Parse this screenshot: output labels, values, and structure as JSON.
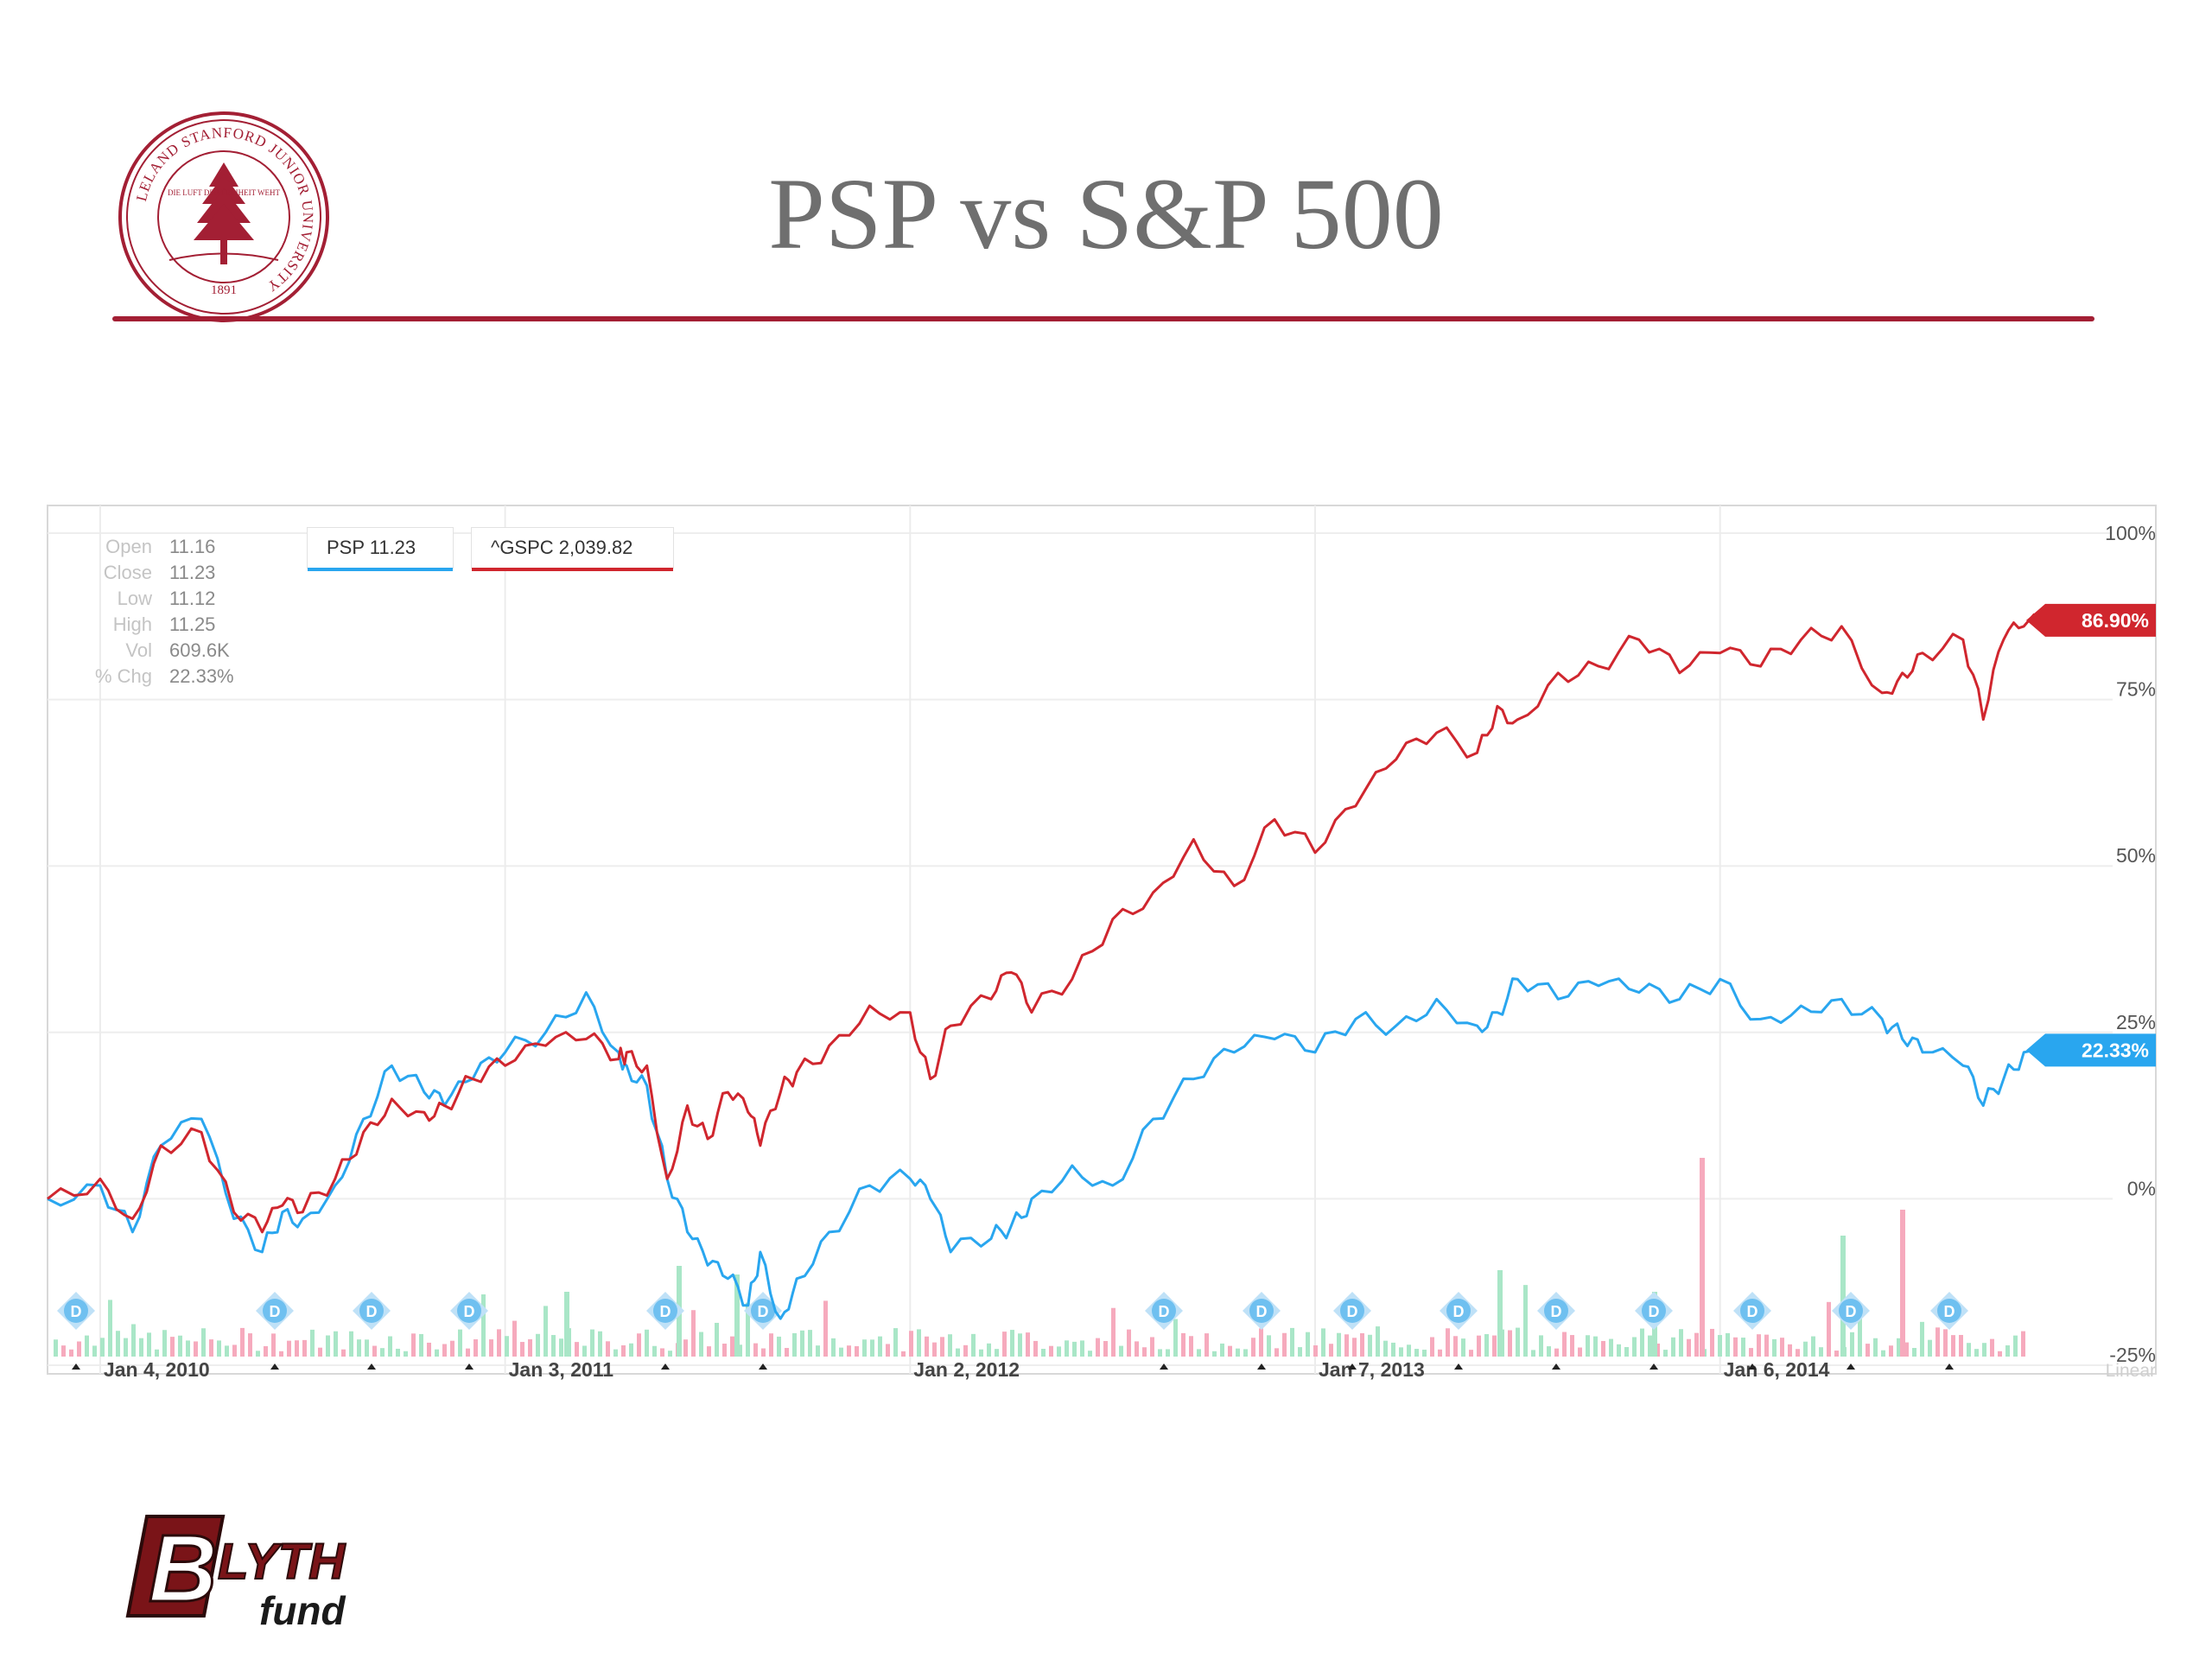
{
  "title": "PSP vs S&P 500",
  "seal_text": "LELAND STANFORD JUNIOR UNIVERSITY",
  "seal_motto": "DIE LUFT DER FREIHEIT WEHT",
  "seal_year": "1891",
  "logo": {
    "brand": "BLYTH",
    "sub": "fund"
  },
  "ohlc": [
    {
      "label": "Open",
      "value": "11.16"
    },
    {
      "label": "Close",
      "value": "11.23"
    },
    {
      "label": "Low",
      "value": "11.12"
    },
    {
      "label": "High",
      "value": "11.25"
    },
    {
      "label": "Vol",
      "value": "609.6K"
    },
    {
      "label": "% Chg",
      "value": "22.33%"
    }
  ],
  "legend": [
    {
      "text": "PSP 11.23",
      "color": "#29a6ef"
    },
    {
      "text": "^GSPC 2,039.82",
      "color": "#d0262e"
    }
  ],
  "chart_data": {
    "type": "line",
    "x_ticks": [
      "Jan 4, 2010",
      "Jan 3, 2011",
      "Jan 2, 2012",
      "Jan 7, 2013",
      "Jan 6, 2014"
    ],
    "y_ticks": [
      "100%",
      "75%",
      "50%",
      "25%",
      "0%",
      "-25%"
    ],
    "ylim": [
      -25,
      100
    ],
    "scale_label": "Linear",
    "grid": true,
    "series": [
      {
        "name": "PSP",
        "color": "#29a6ef",
        "last_label": "22.33%",
        "x": [
          2009.87,
          2010.0,
          2010.08,
          2010.15,
          2010.25,
          2010.33,
          2010.4,
          2010.45,
          2010.5,
          2010.58,
          2010.65,
          2010.72,
          2010.8,
          2010.85,
          2010.92,
          2011.0,
          2011.1,
          2011.2,
          2011.28,
          2011.3,
          2011.35,
          2011.4,
          2011.45,
          2011.5,
          2011.55,
          2011.6,
          2011.63,
          2011.68,
          2011.72,
          2011.8,
          2011.9,
          2012.0,
          2012.05,
          2012.1,
          2012.2,
          2012.25,
          2012.3,
          2012.4,
          2012.5,
          2012.6,
          2012.7,
          2012.8,
          2012.9,
          2013.0,
          2013.1,
          2013.2,
          2013.3,
          2013.4,
          2013.45,
          2013.5,
          2013.6,
          2013.7,
          2013.8,
          2013.9,
          2014.0,
          2014.1,
          2014.2,
          2014.3,
          2014.4,
          2014.45,
          2014.5,
          2014.6,
          2014.65,
          2014.7,
          2014.75,
          2014.85
        ],
        "values": [
          0,
          2,
          -5,
          8,
          12,
          -3,
          -8,
          -2,
          -3,
          2,
          12,
          20,
          16,
          14,
          18,
          22,
          25,
          31,
          22,
          20,
          17,
          3,
          -5,
          -10,
          -12,
          -16,
          -8,
          -18,
          -12,
          -5,
          2,
          3,
          0,
          -8,
          -6,
          -4,
          0,
          5,
          2,
          12,
          18,
          22,
          24,
          22,
          27,
          26,
          30,
          26,
          28,
          33,
          30,
          32,
          31,
          30,
          33,
          27,
          29,
          30,
          27,
          24,
          22,
          20,
          14,
          18,
          22,
          22.33
        ]
      },
      {
        "name": "^GSPC",
        "color": "#d0262e",
        "last_label": "86.90%",
        "x": [
          2009.87,
          2010.0,
          2010.08,
          2010.15,
          2010.25,
          2010.33,
          2010.4,
          2010.45,
          2010.5,
          2010.58,
          2010.65,
          2010.72,
          2010.8,
          2010.85,
          2010.92,
          2011.0,
          2011.1,
          2011.2,
          2011.28,
          2011.3,
          2011.35,
          2011.4,
          2011.45,
          2011.5,
          2011.55,
          2011.6,
          2011.63,
          2011.68,
          2011.72,
          2011.8,
          2011.9,
          2012.0,
          2012.05,
          2012.1,
          2012.2,
          2012.25,
          2012.3,
          2012.4,
          2012.5,
          2012.6,
          2012.7,
          2012.8,
          2012.9,
          2013.0,
          2013.1,
          2013.2,
          2013.3,
          2013.4,
          2013.45,
          2013.5,
          2013.6,
          2013.7,
          2013.8,
          2013.9,
          2014.0,
          2014.1,
          2014.2,
          2014.3,
          2014.4,
          2014.45,
          2014.5,
          2014.6,
          2014.65,
          2014.7,
          2014.75,
          2014.85
        ],
        "values": [
          0,
          3,
          -3,
          8,
          10,
          -2,
          -5,
          -1,
          -2,
          3,
          10,
          15,
          13,
          14,
          18,
          20,
          23,
          24,
          21,
          22,
          20,
          3,
          14,
          9,
          16,
          13,
          8,
          16,
          19,
          23,
          29,
          28,
          18,
          26,
          30,
          34,
          28,
          33,
          42,
          46,
          54,
          47,
          57,
          52,
          59,
          66,
          70,
          67,
          74,
          72,
          79,
          80,
          84,
          79,
          82,
          80,
          84,
          86,
          76,
          79,
          82,
          84,
          72,
          84,
          86,
          86.9
        ]
      }
    ],
    "dividend_marker": "D",
    "volume_bars_shown": true
  }
}
